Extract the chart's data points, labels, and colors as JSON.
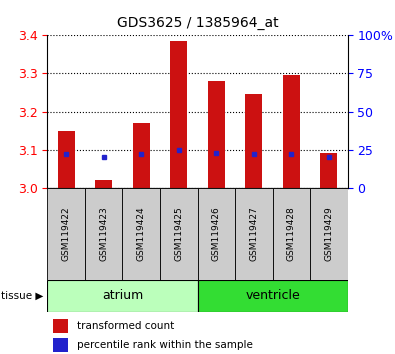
{
  "title": "GDS3625 / 1385964_at",
  "samples": [
    "GSM119422",
    "GSM119423",
    "GSM119424",
    "GSM119425",
    "GSM119426",
    "GSM119427",
    "GSM119428",
    "GSM119429"
  ],
  "transformed_counts": [
    3.15,
    3.02,
    3.17,
    3.385,
    3.28,
    3.245,
    3.295,
    3.09
  ],
  "percentile_ranks_pct": [
    22,
    20,
    22,
    25,
    23,
    22,
    22,
    20
  ],
  "ylim": [
    3.0,
    3.4
  ],
  "yticks": [
    3.0,
    3.1,
    3.2,
    3.3,
    3.4
  ],
  "right_yticks": [
    0,
    25,
    50,
    75,
    100
  ],
  "right_yticklabels": [
    "0",
    "25",
    "50",
    "75",
    "100%"
  ],
  "groups": [
    {
      "label": "atrium",
      "start": 0,
      "end": 4,
      "color": "#bbffbb"
    },
    {
      "label": "ventricle",
      "start": 4,
      "end": 8,
      "color": "#33dd33"
    }
  ],
  "bar_color": "#cc1111",
  "dot_color": "#2222cc",
  "bar_width": 0.45,
  "tissue_label": "tissue",
  "legend_items": [
    {
      "label": "transformed count",
      "color": "#cc1111"
    },
    {
      "label": "percentile rank within the sample",
      "color": "#2222cc"
    }
  ],
  "gray_bg": "#cccccc",
  "atrium_color": "#bbffbb",
  "ventricle_color": "#33dd33"
}
